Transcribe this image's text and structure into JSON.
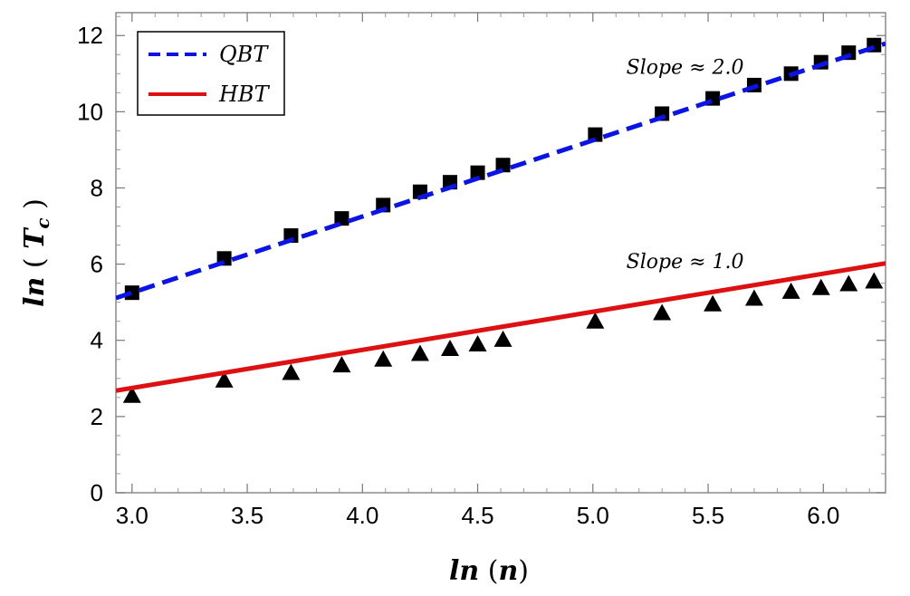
{
  "chart_data": {
    "type": "line",
    "title": "",
    "xlabel": "ln (n)",
    "ylabel": "ln ( T_c )",
    "xlabel_text": "ln",
    "xlabel_var": "n",
    "ylabel_text": "ln",
    "ylabel_var": "T",
    "ylabel_sub": "c",
    "xlim": [
      2.93,
      6.27
    ],
    "ylim": [
      0,
      12.6
    ],
    "xticks": [
      "3.0",
      "3.5",
      "4.0",
      "4.5",
      "5.0",
      "5.5",
      "6.0"
    ],
    "yticks": [
      "0",
      "2",
      "4",
      "6",
      "8",
      "10",
      "12"
    ],
    "legend_position": "top-left",
    "series": [
      {
        "name": "QBT",
        "color": "#0a14e6",
        "line_style": "dashed",
        "marker": "square",
        "fit": {
          "slope": 2.0,
          "intercept": -0.75
        },
        "x": [
          3.0,
          3.4,
          3.69,
          3.91,
          4.09,
          4.25,
          4.38,
          4.5,
          4.61,
          5.01,
          5.3,
          5.52,
          5.7,
          5.86,
          5.99,
          6.11,
          6.22
        ],
        "y": [
          5.25,
          6.15,
          6.75,
          7.2,
          7.55,
          7.9,
          8.15,
          8.4,
          8.6,
          9.4,
          9.95,
          10.35,
          10.7,
          11.0,
          11.3,
          11.55,
          11.75
        ]
      },
      {
        "name": "HBT",
        "color": "#dd1111",
        "line_style": "solid",
        "marker": "triangle",
        "fit": {
          "slope": 1.0,
          "intercept": -0.25
        },
        "x": [
          3.0,
          3.4,
          3.69,
          3.91,
          4.09,
          4.25,
          4.38,
          4.5,
          4.61,
          5.01,
          5.3,
          5.52,
          5.7,
          5.86,
          5.99,
          6.11,
          6.22
        ],
        "y": [
          2.55,
          2.95,
          3.15,
          3.35,
          3.5,
          3.65,
          3.78,
          3.9,
          4.02,
          4.5,
          4.72,
          4.95,
          5.1,
          5.28,
          5.38,
          5.48,
          5.55
        ]
      }
    ],
    "annotations": [
      {
        "text": "Slope ≈ 2.0",
        "x": 5.4,
        "y": 11.0
      },
      {
        "text": "Slope ≈ 1.0",
        "x": 5.4,
        "y": 5.9
      }
    ]
  }
}
